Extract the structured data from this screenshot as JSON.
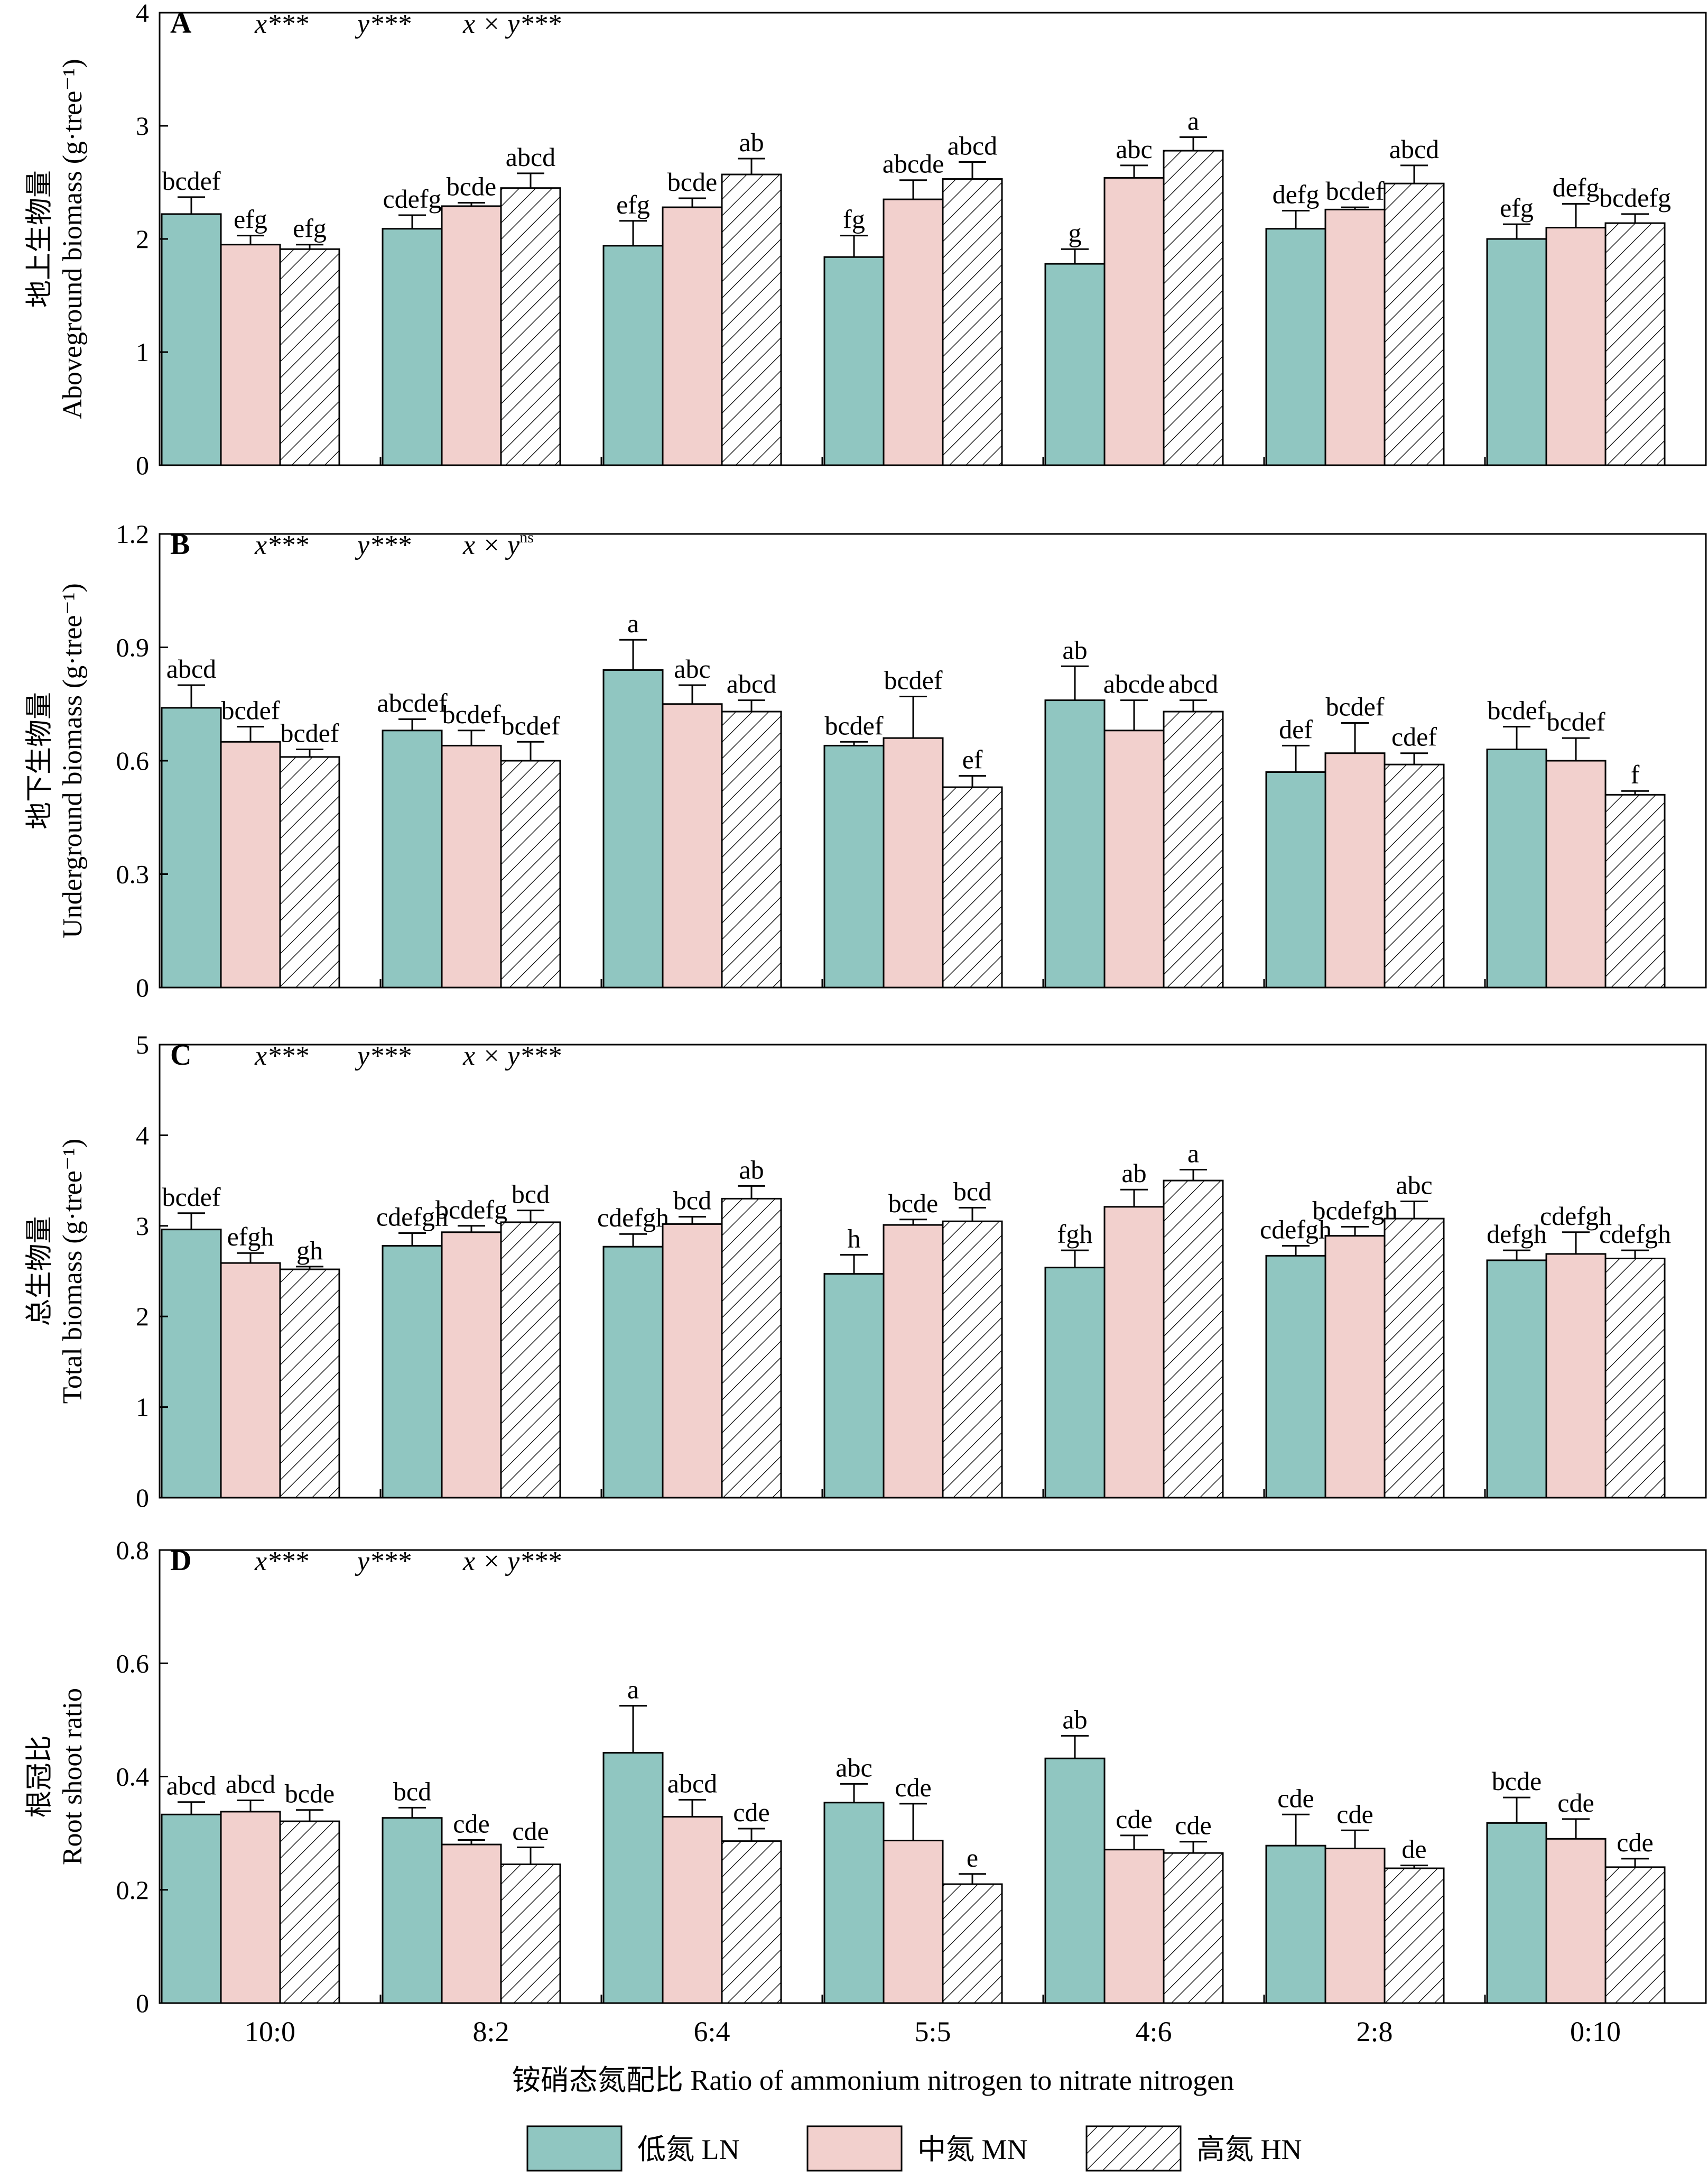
{
  "colors": {
    "LN": "#90c6c1",
    "MN": "#f2d0cd",
    "HN": "#ffffff",
    "axis": "#000000"
  },
  "categories": [
    "10:0",
    "8:2",
    "6:4",
    "5:5",
    "4:6",
    "2:8",
    "0:10"
  ],
  "xlabel": "铵硝态氮配比 Ratio of ammonium nitrogen to nitrate nitrogen",
  "legend": [
    {
      "key": "LN",
      "label": "低氮 LN",
      "pattern": "solid"
    },
    {
      "key": "MN",
      "label": "中氮 MN",
      "pattern": "solid"
    },
    {
      "key": "HN",
      "label": "高氮 HN",
      "pattern": "hatched"
    }
  ],
  "chart_data": [
    {
      "type": "bar",
      "panel": "A",
      "ylabel_cn": "地上生物量",
      "ylabel_en": "Aboveground biomass (g·tree⁻¹)",
      "ylim": [
        0,
        4
      ],
      "yticks": [
        "0",
        "1",
        "2",
        "3",
        "4"
      ],
      "stats": [
        "x***",
        "y***",
        "x × y***"
      ],
      "categories": [
        "10:0",
        "8:2",
        "6:4",
        "5:5",
        "4:6",
        "2:8",
        "0:10"
      ],
      "series": [
        {
          "name": "低氮 LN",
          "values": [
            2.22,
            2.09,
            1.94,
            1.84,
            1.78,
            2.09,
            2.0
          ],
          "errors": [
            0.15,
            0.12,
            0.22,
            0.19,
            0.13,
            0.16,
            0.13
          ],
          "labels": [
            "bcdef",
            "cdefg",
            "efg",
            "fg",
            "g",
            "defg",
            "efg"
          ]
        },
        {
          "name": "中氮 MN",
          "values": [
            1.95,
            2.29,
            2.28,
            2.35,
            2.54,
            2.26,
            2.1
          ],
          "errors": [
            0.08,
            0.03,
            0.08,
            0.17,
            0.11,
            0.02,
            0.21
          ],
          "labels": [
            "efg",
            "bcde",
            "bcde",
            "abcde",
            "abc",
            "bcdef",
            "defg"
          ]
        },
        {
          "name": "高氮 HN",
          "values": [
            1.91,
            2.45,
            2.57,
            2.53,
            2.78,
            2.49,
            2.14
          ],
          "errors": [
            0.04,
            0.13,
            0.14,
            0.15,
            0.12,
            0.16,
            0.08
          ],
          "labels": [
            "efg",
            "abcd",
            "ab",
            "abcd",
            "a",
            "abcd",
            "bcdefg"
          ]
        }
      ]
    },
    {
      "type": "bar",
      "panel": "B",
      "ylabel_cn": "地下生物量",
      "ylabel_en": "Underground biomass (g·tree⁻¹)",
      "ylim": [
        0,
        1.2
      ],
      "yticks": [
        "0",
        "0.3",
        "0.6",
        "0.9",
        "1.2"
      ],
      "stats": [
        "x***",
        "y***",
        "x × y^ns"
      ],
      "categories": [
        "10:0",
        "8:2",
        "6:4",
        "5:5",
        "4:6",
        "2:8",
        "0:10"
      ],
      "series": [
        {
          "name": "低氮 LN",
          "values": [
            0.74,
            0.68,
            0.84,
            0.64,
            0.76,
            0.57,
            0.63
          ],
          "errors": [
            0.06,
            0.03,
            0.08,
            0.01,
            0.09,
            0.07,
            0.06
          ],
          "labels": [
            "abcd",
            "abcdef",
            "a",
            "bcdef",
            "ab",
            "def",
            "bcdef"
          ]
        },
        {
          "name": "中氮 MN",
          "values": [
            0.65,
            0.64,
            0.75,
            0.66,
            0.68,
            0.62,
            0.6
          ],
          "errors": [
            0.04,
            0.04,
            0.05,
            0.11,
            0.08,
            0.08,
            0.06
          ],
          "labels": [
            "bcdef",
            "bcdef",
            "abc",
            "bcdef",
            "abcde",
            "bcdef",
            "bcdef"
          ]
        },
        {
          "name": "高氮 HN",
          "values": [
            0.61,
            0.6,
            0.73,
            0.53,
            0.73,
            0.59,
            0.51
          ],
          "errors": [
            0.02,
            0.05,
            0.03,
            0.03,
            0.03,
            0.03,
            0.01
          ],
          "labels": [
            "bcdef",
            "bcdef",
            "abcd",
            "ef",
            "abcd",
            "cdef",
            "f"
          ]
        }
      ]
    },
    {
      "type": "bar",
      "panel": "C",
      "ylabel_cn": "总生物量",
      "ylabel_en": "Total biomass (g·tree⁻¹)",
      "ylim": [
        0,
        5
      ],
      "yticks": [
        "0",
        "1",
        "2",
        "3",
        "4",
        "5"
      ],
      "stats": [
        "x***",
        "y***",
        "x × y***"
      ],
      "categories": [
        "10:0",
        "8:2",
        "6:4",
        "5:5",
        "4:6",
        "2:8",
        "0:10"
      ],
      "series": [
        {
          "name": "低氮 LN",
          "values": [
            2.96,
            2.78,
            2.77,
            2.47,
            2.54,
            2.67,
            2.62
          ],
          "errors": [
            0.18,
            0.14,
            0.14,
            0.21,
            0.19,
            0.11,
            0.11
          ],
          "labels": [
            "bcdef",
            "cdefgh",
            "cdefgh",
            "h",
            "fgh",
            "cdefgh",
            "defgh"
          ]
        },
        {
          "name": "中氮 MN",
          "values": [
            2.59,
            2.93,
            3.02,
            3.01,
            3.21,
            2.89,
            2.69
          ],
          "errors": [
            0.11,
            0.07,
            0.08,
            0.06,
            0.19,
            0.1,
            0.24
          ],
          "labels": [
            "efgh",
            "bcdefg",
            "bcd",
            "bcde",
            "ab",
            "bcdefgh",
            "cdefgh"
          ]
        },
        {
          "name": "高氮 HN",
          "values": [
            2.52,
            3.04,
            3.3,
            3.05,
            3.5,
            3.08,
            2.64
          ],
          "errors": [
            0.03,
            0.13,
            0.14,
            0.15,
            0.12,
            0.19,
            0.09
          ],
          "labels": [
            "gh",
            "bcd",
            "ab",
            "bcd",
            "a",
            "abc",
            "cdefgh"
          ]
        }
      ]
    },
    {
      "type": "bar",
      "panel": "D",
      "ylabel_cn": "根冠比",
      "ylabel_en": "Root shoot ratio",
      "ylim": [
        0,
        0.8
      ],
      "yticks": [
        "0",
        "0.2",
        "0.4",
        "0.6",
        "0.8"
      ],
      "stats": [
        "x***",
        "y***",
        "x × y***"
      ],
      "xlabel": "铵硝态氮配比 Ratio of ammonium nitrogen to nitrate nitrogen",
      "categories": [
        "10:0",
        "8:2",
        "6:4",
        "5:5",
        "4:6",
        "2:8",
        "0:10"
      ],
      "series": [
        {
          "name": "低氮 LN",
          "values": [
            0.333,
            0.327,
            0.442,
            0.354,
            0.432,
            0.278,
            0.318
          ],
          "errors": [
            0.022,
            0.018,
            0.083,
            0.033,
            0.04,
            0.055,
            0.045
          ],
          "labels": [
            "abcd",
            "bcd",
            "a",
            "abc",
            "ab",
            "cde",
            "bcde"
          ]
        },
        {
          "name": "中氮 MN",
          "values": [
            0.338,
            0.28,
            0.329,
            0.287,
            0.271,
            0.273,
            0.29
          ],
          "errors": [
            0.02,
            0.008,
            0.03,
            0.065,
            0.025,
            0.032,
            0.035
          ],
          "labels": [
            "abcd",
            "cde",
            "abcd",
            "cde",
            "cde",
            "cde",
            "cde"
          ]
        },
        {
          "name": "高氮 HN",
          "values": [
            0.321,
            0.245,
            0.286,
            0.21,
            0.265,
            0.238,
            0.24
          ],
          "errors": [
            0.02,
            0.03,
            0.022,
            0.018,
            0.02,
            0.005,
            0.015
          ],
          "labels": [
            "bcde",
            "cde",
            "cde",
            "e",
            "cde",
            "de",
            "cde"
          ]
        }
      ]
    }
  ]
}
